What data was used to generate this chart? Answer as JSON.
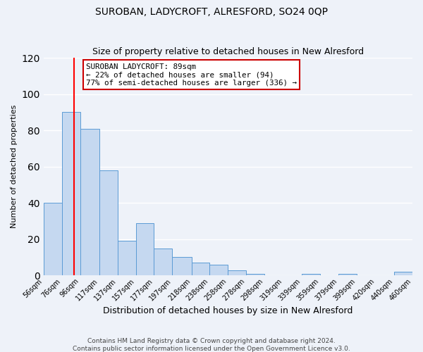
{
  "title": "SUROBAN, LADYCROFT, ALRESFORD, SO24 0QP",
  "subtitle": "Size of property relative to detached houses in New Alresford",
  "xlabel": "Distribution of detached houses by size in New Alresford",
  "ylabel": "Number of detached properties",
  "bar_labels": [
    "56sqm",
    "76sqm",
    "96sqm",
    "117sqm",
    "137sqm",
    "157sqm",
    "177sqm",
    "197sqm",
    "218sqm",
    "238sqm",
    "258sqm",
    "278sqm",
    "298sqm",
    "319sqm",
    "339sqm",
    "359sqm",
    "379sqm",
    "399sqm",
    "420sqm",
    "440sqm",
    "460sqm"
  ],
  "bar_heights": [
    40,
    90,
    81,
    58,
    19,
    29,
    15,
    10,
    7,
    6,
    3,
    1,
    0,
    0,
    1,
    0,
    1,
    0,
    0,
    2
  ],
  "bar_color": "#c5d8f0",
  "bar_edge_color": "#5b9bd5",
  "ylim": [
    0,
    120
  ],
  "yticks": [
    0,
    20,
    40,
    60,
    80,
    100,
    120
  ],
  "red_line_x": 89,
  "annotation_title": "SUROBAN LADYCROFT: 89sqm",
  "annotation_line1": "← 22% of detached houses are smaller (94)",
  "annotation_line2": "77% of semi-detached houses are larger (336) →",
  "annotation_box_color": "#ffffff",
  "annotation_box_edge": "#cc0000",
  "footer1": "Contains HM Land Registry data © Crown copyright and database right 2024.",
  "footer2": "Contains public sector information licensed under the Open Government Licence v3.0.",
  "bg_color": "#eef2f9",
  "plot_bg_color": "#eef2f9",
  "grid_color": "#ffffff",
  "bin_edges": [
    56,
    76,
    96,
    117,
    137,
    157,
    177,
    197,
    218,
    238,
    258,
    278,
    298,
    319,
    339,
    359,
    379,
    399,
    420,
    440,
    460
  ]
}
